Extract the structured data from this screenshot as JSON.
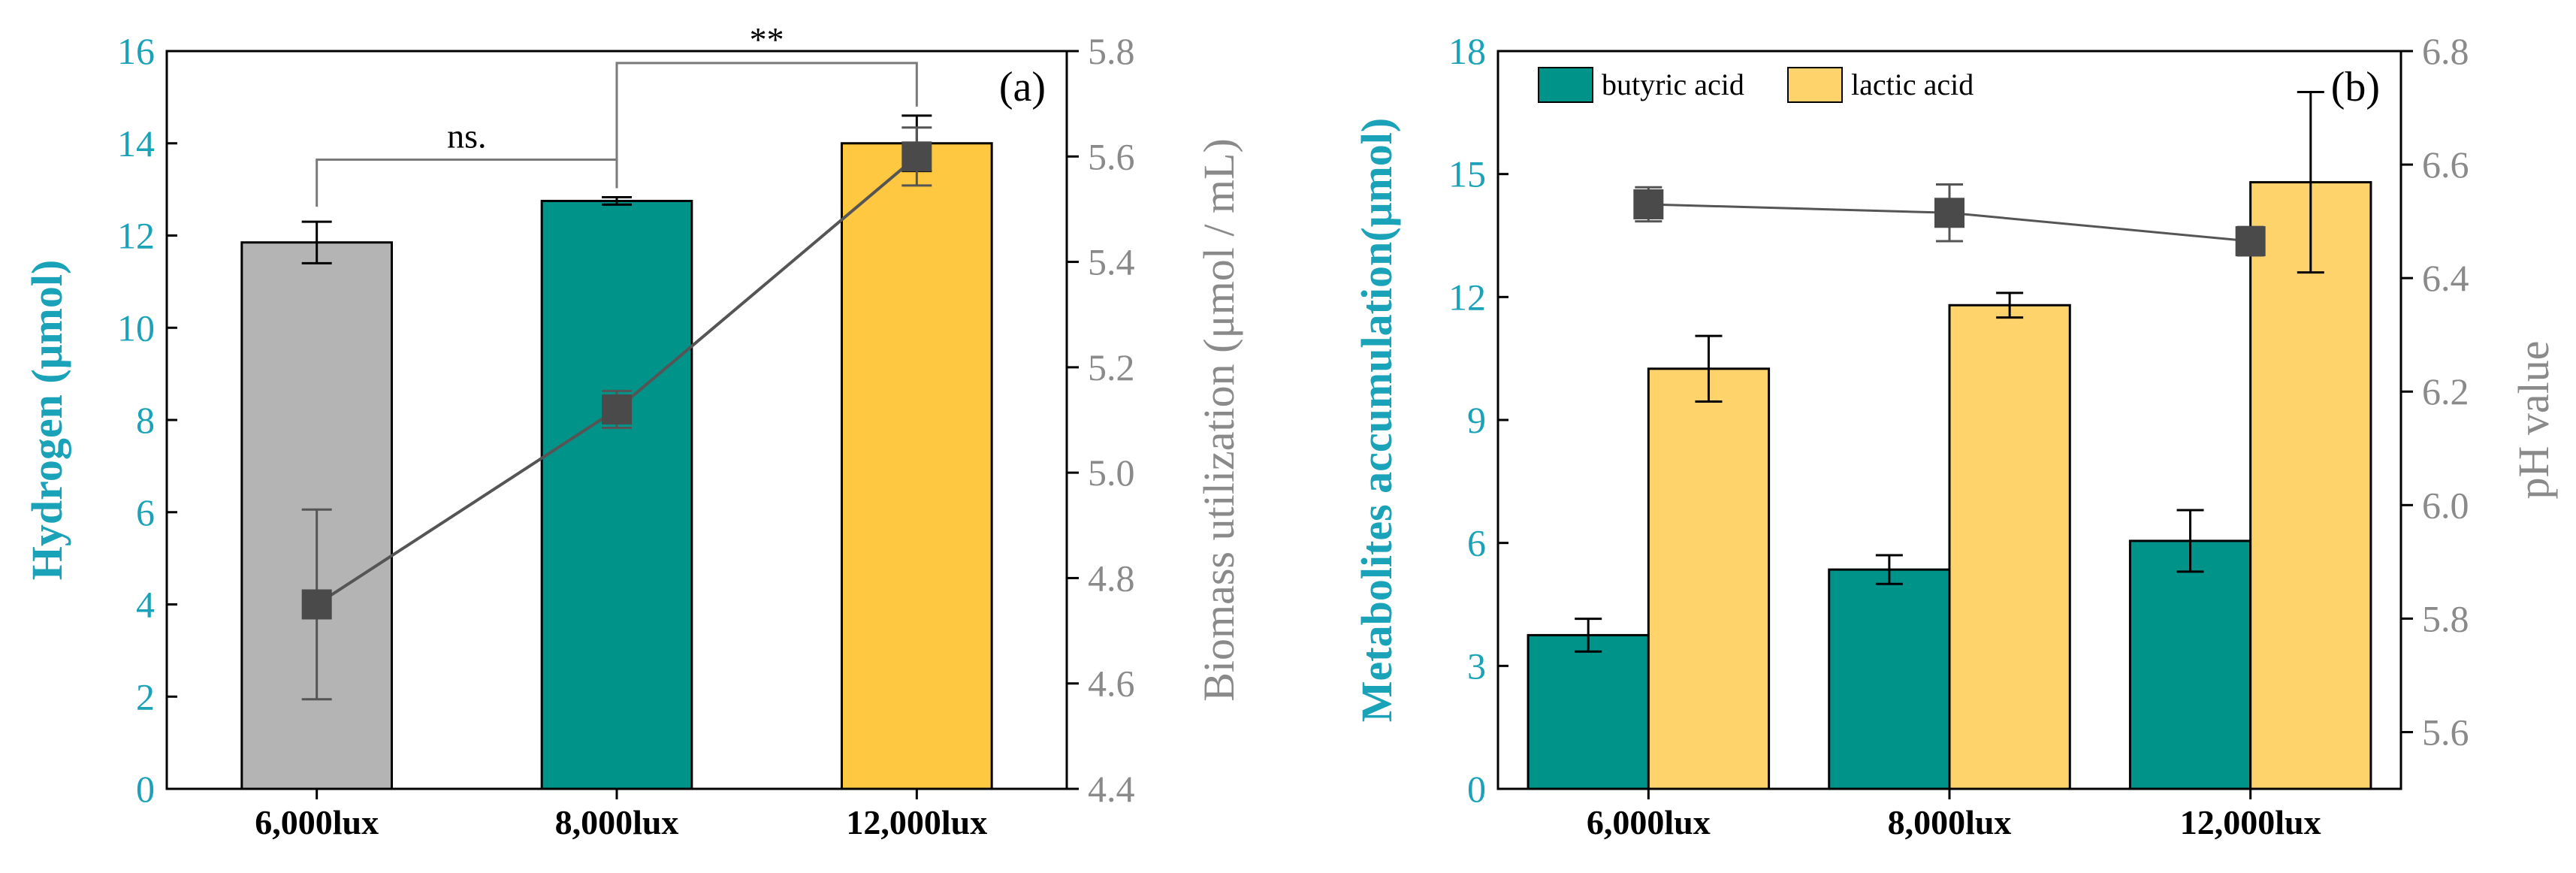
{
  "chart_data": [
    {
      "type": "bar",
      "panel_label": "(a)",
      "categories": [
        "6,000lux",
        "8,000lux",
        "12,000lux"
      ],
      "ylabel": "Hydrogen (μmol)",
      "ylim": [
        0,
        16
      ],
      "yticks": [
        "0",
        "2",
        "4",
        "6",
        "8",
        "10",
        "12",
        "14",
        "16"
      ],
      "y2label": "Biomass utilization (μmol / mL)",
      "y2lim": [
        4.4,
        5.8
      ],
      "y2ticks": [
        "4.4",
        "4.6",
        "4.8",
        "5.0",
        "5.2",
        "5.4",
        "5.6",
        "5.8"
      ],
      "bars": {
        "values": [
          11.85,
          12.75,
          14.0
        ],
        "errors": [
          0.45,
          0.08,
          0.6
        ],
        "colors": [
          "#b4b4b4",
          "#00938a",
          "#ffc840"
        ]
      },
      "line": {
        "values": [
          4.75,
          5.12,
          5.6
        ],
        "errors": [
          0.18,
          0.035,
          0.055
        ],
        "color": "#555555"
      },
      "significance": [
        {
          "from": 0,
          "to": 1,
          "label": "ns."
        },
        {
          "from": 1,
          "to": 2,
          "label": "**"
        }
      ]
    },
    {
      "type": "bar",
      "panel_label": "(b)",
      "categories": [
        "6,000lux",
        "8,000lux",
        "12,000lux"
      ],
      "ylabel": "Metabolites accumulation(μmol)",
      "ylim": [
        0,
        18
      ],
      "yticks": [
        "0",
        "3",
        "6",
        "9",
        "12",
        "15",
        "18"
      ],
      "y2label": "pH value",
      "y2lim": [
        5.5,
        6.8
      ],
      "y2ticks": [
        "5.6",
        "5.8",
        "6.0",
        "6.2",
        "6.4",
        "6.6",
        "6.8"
      ],
      "legend_position": "top-left",
      "series": [
        {
          "name": "butyric acid",
          "values": [
            3.75,
            5.35,
            6.05
          ],
          "errors": [
            0.4,
            0.35,
            0.75
          ],
          "color": "#00938a"
        },
        {
          "name": "lactic acid",
          "values": [
            10.25,
            11.8,
            14.8
          ],
          "errors": [
            0.8,
            0.3,
            2.2
          ],
          "color": "#ffd36b"
        }
      ],
      "line": {
        "values": [
          6.53,
          6.515,
          6.465
        ],
        "errors": [
          0.03,
          0.05,
          0.025
        ],
        "color": "#555555"
      }
    }
  ]
}
